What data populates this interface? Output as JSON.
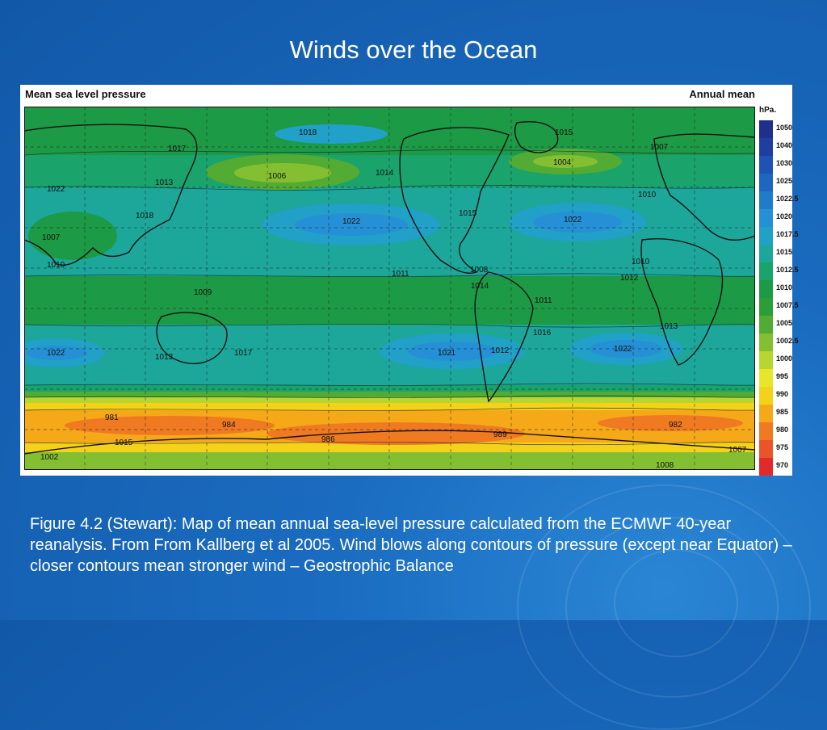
{
  "slide": {
    "title": "Winds over the Ocean",
    "caption": "Figure 4.2 (Stewart): Map of mean annual sea-level pressure calculated from the ECMWF 40-year reanalysis. From From Kallberg et al 2005. Wind blows along contours of pressure (except near Equator) – closer contours mean stronger wind – Geostrophic Balance",
    "background_color": "#1565b8"
  },
  "figure": {
    "header_left": "Mean sea level pressure",
    "header_right": "Annual mean",
    "colorbar": {
      "unit": "hPa.",
      "levels": [
        {
          "label": "1050",
          "color": "#1e2f8c"
        },
        {
          "label": "1040",
          "color": "#1f3ea0"
        },
        {
          "label": "1030",
          "color": "#1f52b4"
        },
        {
          "label": "1025",
          "color": "#1d66c2"
        },
        {
          "label": "1022.5",
          "color": "#1f7ccc"
        },
        {
          "label": "1020",
          "color": "#2690d6"
        },
        {
          "label": "1017.5",
          "color": "#21a0c8"
        },
        {
          "label": "1015",
          "color": "#1ca79a"
        },
        {
          "label": "1012.5",
          "color": "#1aa36a"
        },
        {
          "label": "1010",
          "color": "#1d9a45"
        },
        {
          "label": "1007.5",
          "color": "#2b9e38"
        },
        {
          "label": "1005",
          "color": "#52ac33"
        },
        {
          "label": "1002.5",
          "color": "#84bf32"
        },
        {
          "label": "1000",
          "color": "#b8d630"
        },
        {
          "label": "995",
          "color": "#e8e62a"
        },
        {
          "label": "990",
          "color": "#f5d21a"
        },
        {
          "label": "985",
          "color": "#f5a818"
        },
        {
          "label": "980",
          "color": "#ef7a22"
        },
        {
          "label": "975",
          "color": "#eb5428"
        },
        {
          "label": "970",
          "color": "#e32a2a"
        }
      ]
    },
    "contour_labels": [
      {
        "text": "1018"
      },
      {
        "text": "1017"
      },
      {
        "text": "1006"
      },
      {
        "text": "1013"
      },
      {
        "text": "1022"
      },
      {
        "text": "1018"
      },
      {
        "text": "1007"
      },
      {
        "text": "1010"
      },
      {
        "text": "1014"
      },
      {
        "text": "1022"
      },
      {
        "text": "1015"
      },
      {
        "text": "1004"
      },
      {
        "text": "1007"
      },
      {
        "text": "1010"
      },
      {
        "text": "1015"
      },
      {
        "text": "1022"
      },
      {
        "text": "1011"
      },
      {
        "text": "1008"
      },
      {
        "text": "1014"
      },
      {
        "text": "1010"
      },
      {
        "text": "1012"
      },
      {
        "text": "1009"
      },
      {
        "text": "1011"
      },
      {
        "text": "1013"
      },
      {
        "text": "1022"
      },
      {
        "text": "1017"
      },
      {
        "text": "1021"
      },
      {
        "text": "1012"
      },
      {
        "text": "1016"
      },
      {
        "text": "1022"
      },
      {
        "text": "1013"
      },
      {
        "text": "981"
      },
      {
        "text": "984"
      },
      {
        "text": "986"
      },
      {
        "text": "989"
      },
      {
        "text": "982"
      },
      {
        "text": "1015"
      },
      {
        "text": "1002"
      },
      {
        "text": "1007"
      },
      {
        "text": "1008"
      }
    ]
  }
}
